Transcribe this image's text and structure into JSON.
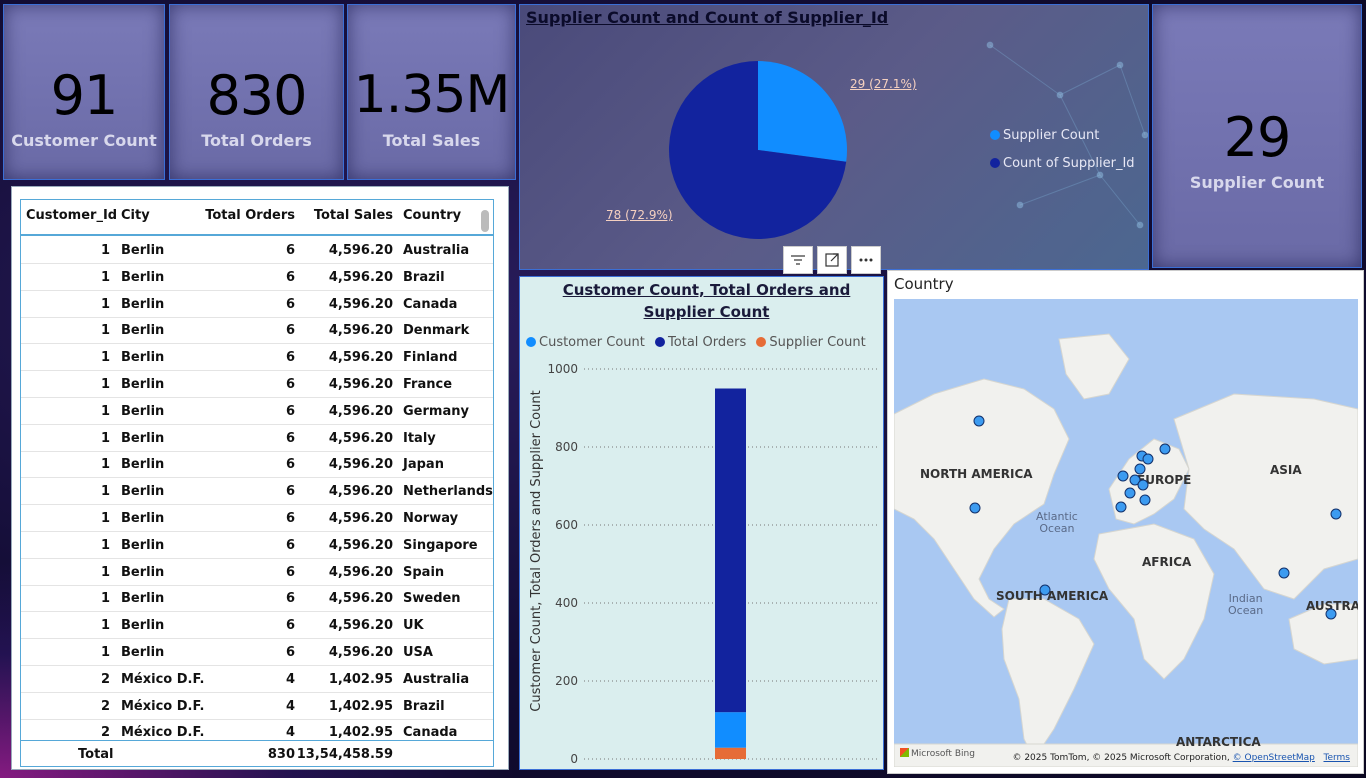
{
  "kpis": {
    "customer_count": {
      "value": "91",
      "label": "Customer Count"
    },
    "total_orders": {
      "value": "830",
      "label": "Total Orders"
    },
    "total_sales": {
      "value": "1.35M",
      "label": "Total Sales"
    },
    "supplier_count": {
      "value": "29",
      "label": "Supplier Count"
    }
  },
  "table": {
    "headers": [
      "Customer_Id",
      "City",
      "Total Orders",
      "Total Sales",
      "Country"
    ],
    "rows": [
      [
        "1",
        "Berlin",
        "6",
        "4,596.20",
        "Australia"
      ],
      [
        "1",
        "Berlin",
        "6",
        "4,596.20",
        "Brazil"
      ],
      [
        "1",
        "Berlin",
        "6",
        "4,596.20",
        "Canada"
      ],
      [
        "1",
        "Berlin",
        "6",
        "4,596.20",
        "Denmark"
      ],
      [
        "1",
        "Berlin",
        "6",
        "4,596.20",
        "Finland"
      ],
      [
        "1",
        "Berlin",
        "6",
        "4,596.20",
        "France"
      ],
      [
        "1",
        "Berlin",
        "6",
        "4,596.20",
        "Germany"
      ],
      [
        "1",
        "Berlin",
        "6",
        "4,596.20",
        "Italy"
      ],
      [
        "1",
        "Berlin",
        "6",
        "4,596.20",
        "Japan"
      ],
      [
        "1",
        "Berlin",
        "6",
        "4,596.20",
        "Netherlands"
      ],
      [
        "1",
        "Berlin",
        "6",
        "4,596.20",
        "Norway"
      ],
      [
        "1",
        "Berlin",
        "6",
        "4,596.20",
        "Singapore"
      ],
      [
        "1",
        "Berlin",
        "6",
        "4,596.20",
        "Spain"
      ],
      [
        "1",
        "Berlin",
        "6",
        "4,596.20",
        "Sweden"
      ],
      [
        "1",
        "Berlin",
        "6",
        "4,596.20",
        "UK"
      ],
      [
        "1",
        "Berlin",
        "6",
        "4,596.20",
        "USA"
      ],
      [
        "2",
        "México D.F.",
        "4",
        "1,402.95",
        "Australia"
      ],
      [
        "2",
        "México D.F.",
        "4",
        "1,402.95",
        "Brazil"
      ],
      [
        "2",
        "México D.F.",
        "4",
        "1,402.95",
        "Canada"
      ]
    ],
    "total": {
      "label": "Total",
      "orders": "830",
      "sales": "13,54,458.59"
    }
  },
  "pie": {
    "title": "Supplier Count and Count of Supplier_Id",
    "label_a": "29 (27.1%)",
    "label_b": "78 (72.9%)",
    "legend": [
      {
        "name": "Supplier Count",
        "color": "#118dff"
      },
      {
        "name": "Count of Supplier_Id",
        "color": "#12239e"
      }
    ]
  },
  "bar": {
    "title": "Customer Count, Total Orders and Supplier Count",
    "ylabel": "Customer Count, Total Orders and Supplier Count",
    "legend": [
      {
        "name": "Customer Count",
        "color": "#118dff"
      },
      {
        "name": "Total Orders",
        "color": "#12239e"
      },
      {
        "name": "Supplier Count",
        "color": "#e66c37"
      }
    ],
    "ticks": [
      "0",
      "200",
      "400",
      "600",
      "800",
      "1000"
    ]
  },
  "map": {
    "title": "Country",
    "labels": {
      "north_america": "NORTH AMERICA",
      "europe": "EUROPE",
      "asia": "ASIA",
      "africa": "AFRICA",
      "south_america": "SOUTH AMERICA",
      "australia": "AUSTRAI",
      "antarctica": "ANTARCTICA",
      "atlantic_1": "Atlantic",
      "atlantic_2": "Ocean",
      "indian_1": "Indian",
      "indian_2": "Ocean"
    },
    "bing": "Microsoft Bing",
    "attribution": "© 2025 TomTom, © 2025 Microsoft Corporation,",
    "osm": "© OpenStreetMap",
    "terms": "Terms"
  },
  "chart_data": [
    {
      "type": "pie",
      "title": "Supplier Count and Count of Supplier_Id",
      "categories": [
        "Supplier Count",
        "Count of Supplier_Id"
      ],
      "values": [
        29,
        78
      ],
      "legend": "right"
    },
    {
      "type": "bar",
      "stacked": true,
      "title": "Customer Count, Total Orders and Supplier Count",
      "xlabel": "",
      "ylabel": "Customer Count, Total Orders and Supplier Count",
      "ylim": [
        0,
        1000
      ],
      "series": [
        {
          "name": "Supplier Count",
          "values": [
            29
          ]
        },
        {
          "name": "Customer Count",
          "values": [
            91
          ]
        },
        {
          "name": "Total Orders",
          "values": [
            830
          ]
        }
      ],
      "legend": "top",
      "grid": true
    }
  ]
}
